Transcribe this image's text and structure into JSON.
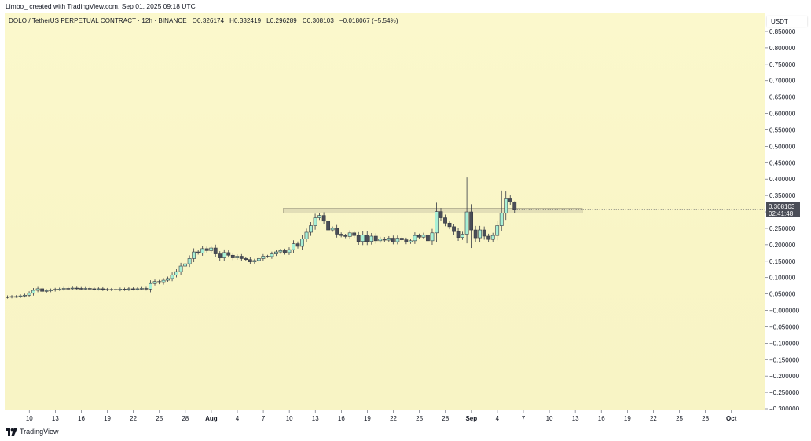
{
  "header": {
    "attribution": "Limbo_ created with TradingView.com, Sep 01, 2025 09:18 UTC"
  },
  "legend": {
    "symbol": "DOLO / TetherUS PERPETUAL CONTRACT · 12h · BINANCE",
    "open": "O0.326174",
    "high": "H0.332419",
    "low": "L0.296289",
    "close": "C0.308103",
    "change": "−0.018067 (−5.54%)"
  },
  "price_axis": {
    "unit": "USDT"
  },
  "last_price": {
    "value": "0.308103",
    "countdown": "02:41:48"
  },
  "footer": {
    "brand": "TradingView"
  },
  "colors": {
    "up": "#a8f0d6",
    "down": "#4a4d57",
    "wick": "#363a45",
    "zone": "#d8d4b0"
  },
  "chart_data": {
    "type": "candlestick",
    "ylim": [
      -0.3,
      0.85
    ],
    "y_ticks": [
      "0.850000",
      "0.800000",
      "0.750000",
      "0.700000",
      "0.650000",
      "0.600000",
      "0.550000",
      "0.500000",
      "0.450000",
      "0.400000",
      "0.350000",
      "0.300000",
      "0.250000",
      "0.200000",
      "0.150000",
      "0.100000",
      "0.050000",
      "−0.000000",
      "−0.050000",
      "−0.100000",
      "−0.150000",
      "−0.200000",
      "−0.250000",
      "−0.300000"
    ],
    "x_ticks": [
      {
        "label": "10",
        "bold": false
      },
      {
        "label": "13",
        "bold": false
      },
      {
        "label": "16",
        "bold": false
      },
      {
        "label": "19",
        "bold": false
      },
      {
        "label": "22",
        "bold": false
      },
      {
        "label": "25",
        "bold": false
      },
      {
        "label": "28",
        "bold": false
      },
      {
        "label": "Aug",
        "bold": true
      },
      {
        "label": "4",
        "bold": false
      },
      {
        "label": "7",
        "bold": false
      },
      {
        "label": "10",
        "bold": false
      },
      {
        "label": "13",
        "bold": false
      },
      {
        "label": "16",
        "bold": false
      },
      {
        "label": "19",
        "bold": false
      },
      {
        "label": "22",
        "bold": false
      },
      {
        "label": "25",
        "bold": false
      },
      {
        "label": "28",
        "bold": false
      },
      {
        "label": "Sep",
        "bold": true
      },
      {
        "label": "4",
        "bold": false
      },
      {
        "label": "7",
        "bold": false
      },
      {
        "label": "10",
        "bold": false
      },
      {
        "label": "13",
        "bold": false
      },
      {
        "label": "16",
        "bold": false
      },
      {
        "label": "19",
        "bold": false
      },
      {
        "label": "22",
        "bold": false
      },
      {
        "label": "25",
        "bold": false
      },
      {
        "label": "28",
        "bold": false
      },
      {
        "label": "Oct",
        "bold": true
      }
    ],
    "first_tick_index": 5,
    "ticks_every": 6,
    "resistance_zone": {
      "y_low": 0.297,
      "y_high": 0.311,
      "start_index": 64,
      "end_index": 133
    },
    "close_start": 0.04,
    "closes": [
      0.041,
      0.042,
      0.042,
      0.044,
      0.046,
      0.052,
      0.061,
      0.066,
      0.058,
      0.06,
      0.062,
      0.064,
      0.065,
      0.067,
      0.066,
      0.068,
      0.067,
      0.066,
      0.067,
      0.066,
      0.065,
      0.066,
      0.064,
      0.063,
      0.064,
      0.063,
      0.065,
      0.064,
      0.066,
      0.065,
      0.066,
      0.067,
      0.065,
      0.082,
      0.088,
      0.085,
      0.092,
      0.097,
      0.108,
      0.118,
      0.135,
      0.142,
      0.158,
      0.178,
      0.175,
      0.188,
      0.182,
      0.19,
      0.172,
      0.16,
      0.176,
      0.168,
      0.16,
      0.165,
      0.158,
      0.155,
      0.148,
      0.152,
      0.158,
      0.165,
      0.164,
      0.172,
      0.178,
      0.182,
      0.176,
      0.185,
      0.203,
      0.195,
      0.218,
      0.238,
      0.258,
      0.282,
      0.289,
      0.272,
      0.245,
      0.25,
      0.232,
      0.228,
      0.225,
      0.236,
      0.228,
      0.21,
      0.23,
      0.21,
      0.226,
      0.212,
      0.218,
      0.214,
      0.22,
      0.209,
      0.22,
      0.215,
      0.208,
      0.212,
      0.228,
      0.223,
      0.23,
      0.212,
      0.236,
      0.301,
      0.282,
      0.266,
      0.255,
      0.24,
      0.222,
      0.232,
      0.3,
      0.245,
      0.221,
      0.245,
      0.226,
      0.216,
      0.228,
      0.258,
      0.296,
      0.342,
      0.33,
      0.308
    ]
  }
}
